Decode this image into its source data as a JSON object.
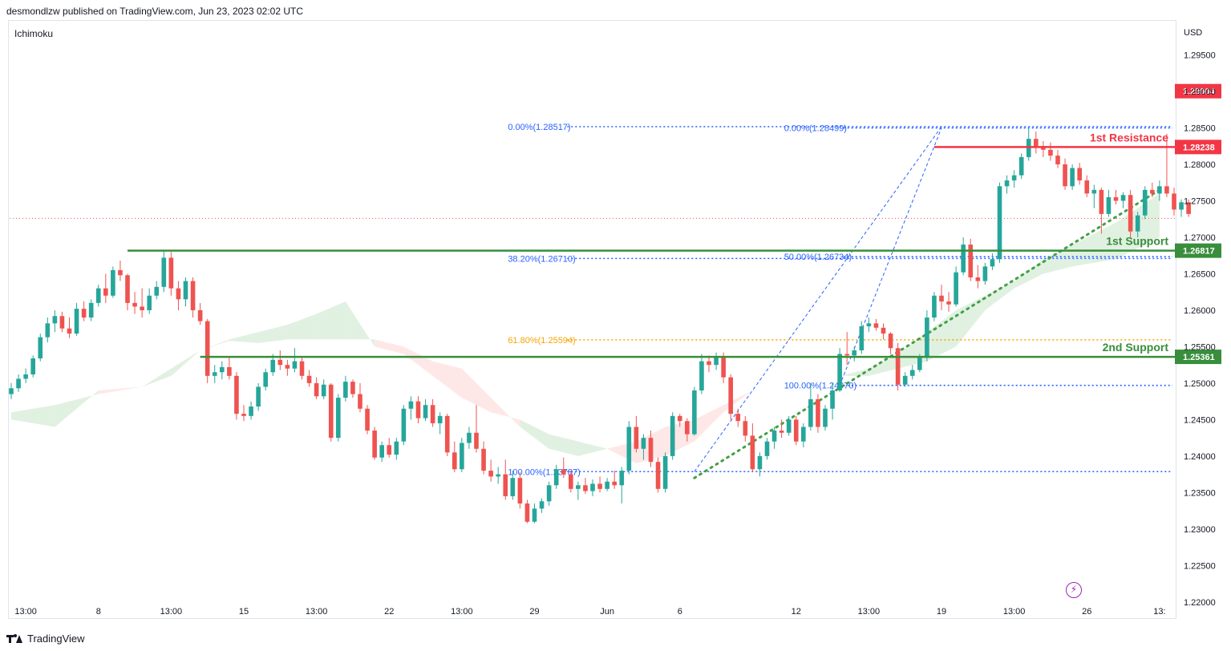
{
  "header": {
    "text": "desmondlzw published on TradingView.com, Jun 23, 2023 02:02 UTC"
  },
  "indicator": {
    "name": "Ichimoku"
  },
  "footer": {
    "brand": "TradingView"
  },
  "colors": {
    "up": "#26a69a",
    "down": "#ef5350",
    "resistance": "#f23645",
    "support": "#388e3c",
    "fib_blue": "#2962ff",
    "fib_orange": "#f7a400",
    "cloud_green": "#c8e6c9",
    "cloud_red": "#fdd6d3",
    "trend_dotted": "#43a047",
    "current_price_line": "#ef5350",
    "flash_icon": "#9c27b0"
  },
  "icons": {
    "flash": "lightning-icon",
    "logo": "tradingview-logo-icon"
  },
  "chart_data": {
    "type": "candlestick",
    "currency": "USD",
    "ylim": [
      1.218,
      1.301
    ],
    "y_ticks": [
      "1.29500",
      "1.29000",
      "1.28500",
      "1.28000",
      "1.27500",
      "1.27000",
      "1.26500",
      "1.26000",
      "1.25500",
      "1.25000",
      "1.24500",
      "1.24000",
      "1.23500",
      "1.23000",
      "1.22500",
      "1.22000"
    ],
    "x_ticks": [
      "13:00",
      "8",
      "13:00",
      "15",
      "13:00",
      "22",
      "13:00",
      "29",
      "Jun",
      "6",
      "12",
      "13:00",
      "19",
      "13:00",
      "26",
      "13:"
    ],
    "x_tick_index": [
      2,
      12,
      22,
      32,
      42,
      52,
      62,
      72,
      82,
      92,
      108,
      118,
      128,
      138,
      148,
      158
    ],
    "x_index_range": [
      0,
      160
    ],
    "ohlc": [
      [
        1.2485,
        1.25,
        1.2478,
        1.2493
      ],
      [
        1.2493,
        1.2512,
        1.2488,
        1.2506
      ],
      [
        1.2506,
        1.252,
        1.25,
        1.2512
      ],
      [
        1.2512,
        1.2538,
        1.2508,
        1.2534
      ],
      [
        1.2534,
        1.2568,
        1.253,
        1.2563
      ],
      [
        1.2563,
        1.259,
        1.2556,
        1.2582
      ],
      [
        1.2582,
        1.26,
        1.257,
        1.2592
      ],
      [
        1.2592,
        1.2598,
        1.257,
        1.2575
      ],
      [
        1.2575,
        1.259,
        1.2562,
        1.2568
      ],
      [
        1.2568,
        1.261,
        1.2565,
        1.2602
      ],
      [
        1.2602,
        1.2612,
        1.2585,
        1.259
      ],
      [
        1.259,
        1.2615,
        1.2585,
        1.261
      ],
      [
        1.261,
        1.2635,
        1.2605,
        1.263
      ],
      [
        1.263,
        1.265,
        1.261,
        1.262
      ],
      [
        1.262,
        1.266,
        1.2617,
        1.2655
      ],
      [
        1.2655,
        1.2668,
        1.264,
        1.2648
      ],
      [
        1.2648,
        1.265,
        1.26,
        1.261
      ],
      [
        1.261,
        1.2625,
        1.2595,
        1.2605
      ],
      [
        1.2605,
        1.263,
        1.259,
        1.26
      ],
      [
        1.26,
        1.263,
        1.2595,
        1.262
      ],
      [
        1.262,
        1.264,
        1.2615,
        1.2632
      ],
      [
        1.2632,
        1.2682,
        1.2625,
        1.2672
      ],
      [
        1.2672,
        1.268,
        1.262,
        1.263
      ],
      [
        1.263,
        1.264,
        1.26,
        1.2615
      ],
      [
        1.2615,
        1.2645,
        1.2605,
        1.264
      ],
      [
        1.264,
        1.2645,
        1.259,
        1.26
      ],
      [
        1.26,
        1.261,
        1.258,
        1.2585
      ],
      [
        1.2585,
        1.2588,
        1.25,
        1.251
      ],
      [
        1.251,
        1.2525,
        1.25,
        1.2515
      ],
      [
        1.2515,
        1.253,
        1.2505,
        1.2522
      ],
      [
        1.2522,
        1.2536,
        1.2505,
        1.251
      ],
      [
        1.251,
        1.2515,
        1.245,
        1.2458
      ],
      [
        1.2458,
        1.247,
        1.2448,
        1.2455
      ],
      [
        1.2455,
        1.2475,
        1.245,
        1.2468
      ],
      [
        1.2468,
        1.25,
        1.2462,
        1.2495
      ],
      [
        1.2495,
        1.252,
        1.249,
        1.2515
      ],
      [
        1.2515,
        1.254,
        1.251,
        1.2532
      ],
      [
        1.2532,
        1.2545,
        1.2518,
        1.2525
      ],
      [
        1.2525,
        1.2532,
        1.251,
        1.252
      ],
      [
        1.252,
        1.2548,
        1.2515,
        1.253
      ],
      [
        1.253,
        1.2535,
        1.2505,
        1.251
      ],
      [
        1.251,
        1.2518,
        1.2495,
        1.25
      ],
      [
        1.25,
        1.2508,
        1.2478,
        1.2482
      ],
      [
        1.2482,
        1.2505,
        1.2478,
        1.2498
      ],
      [
        1.2498,
        1.25,
        1.242,
        1.2425
      ],
      [
        1.2425,
        1.2485,
        1.242,
        1.248
      ],
      [
        1.248,
        1.251,
        1.2475,
        1.2502
      ],
      [
        1.2502,
        1.2505,
        1.248,
        1.2485
      ],
      [
        1.2485,
        1.25,
        1.246,
        1.2465
      ],
      [
        1.2465,
        1.247,
        1.243,
        1.2435
      ],
      [
        1.2435,
        1.244,
        1.2395,
        1.2398
      ],
      [
        1.2398,
        1.242,
        1.2392,
        1.2415
      ],
      [
        1.2415,
        1.2425,
        1.2398,
        1.2402
      ],
      [
        1.2402,
        1.2425,
        1.2395,
        1.242
      ],
      [
        1.242,
        1.247,
        1.2415,
        1.2465
      ],
      [
        1.2465,
        1.2482,
        1.245,
        1.2475
      ],
      [
        1.2475,
        1.2482,
        1.2445,
        1.2452
      ],
      [
        1.2452,
        1.2478,
        1.2448,
        1.247
      ],
      [
        1.247,
        1.2478,
        1.244,
        1.2445
      ],
      [
        1.2445,
        1.246,
        1.243,
        1.2455
      ],
      [
        1.2455,
        1.2458,
        1.24,
        1.2405
      ],
      [
        1.2405,
        1.242,
        1.2378,
        1.2382
      ],
      [
        1.2382,
        1.2425,
        1.2378,
        1.2418
      ],
      [
        1.2418,
        1.244,
        1.241,
        1.2432
      ],
      [
        1.2432,
        1.247,
        1.2405,
        1.241
      ],
      [
        1.241,
        1.242,
        1.2375,
        1.238
      ],
      [
        1.238,
        1.2395,
        1.2365,
        1.2372
      ],
      [
        1.2372,
        1.2385,
        1.2362,
        1.2375
      ],
      [
        1.2375,
        1.2395,
        1.234,
        1.2345
      ],
      [
        1.2345,
        1.238,
        1.234,
        1.237
      ],
      [
        1.237,
        1.2378,
        1.2328,
        1.2335
      ],
      [
        1.2335,
        1.234,
        1.2308,
        1.231
      ],
      [
        1.231,
        1.2335,
        1.2308,
        1.2328
      ],
      [
        1.2328,
        1.2342,
        1.2322,
        1.2338
      ],
      [
        1.2338,
        1.2365,
        1.2332,
        1.236
      ],
      [
        1.236,
        1.2388,
        1.2355,
        1.2382
      ],
      [
        1.2382,
        1.2398,
        1.237,
        1.2375
      ],
      [
        1.2375,
        1.238,
        1.235,
        1.2355
      ],
      [
        1.2355,
        1.2365,
        1.234,
        1.236
      ],
      [
        1.236,
        1.237,
        1.2348,
        1.2352
      ],
      [
        1.2352,
        1.2368,
        1.2345,
        1.2362
      ],
      [
        1.2362,
        1.2372,
        1.235,
        1.2355
      ],
      [
        1.2355,
        1.237,
        1.2352,
        1.2365
      ],
      [
        1.2365,
        1.238,
        1.2355,
        1.236
      ],
      [
        1.236,
        1.2385,
        1.2335,
        1.238
      ],
      [
        1.238,
        1.2448,
        1.2375,
        1.244
      ],
      [
        1.244,
        1.2455,
        1.2405,
        1.241
      ],
      [
        1.241,
        1.243,
        1.2395,
        1.2425
      ],
      [
        1.2425,
        1.2435,
        1.2385,
        1.2392
      ],
      [
        1.2392,
        1.2398,
        1.235,
        1.2355
      ],
      [
        1.2355,
        1.2405,
        1.235,
        1.24
      ],
      [
        1.24,
        1.246,
        1.2395,
        1.2455
      ],
      [
        1.2455,
        1.2458,
        1.244,
        1.2448
      ],
      [
        1.2448,
        1.2452,
        1.242,
        1.243
      ],
      [
        1.243,
        1.2495,
        1.2428,
        1.249
      ],
      [
        1.249,
        1.254,
        1.2485,
        1.253
      ],
      [
        1.253,
        1.2538,
        1.2515,
        1.2525
      ],
      [
        1.2525,
        1.2542,
        1.2518,
        1.2535
      ],
      [
        1.2535,
        1.2542,
        1.25,
        1.2508
      ],
      [
        1.2508,
        1.2512,
        1.245,
        1.2458
      ],
      [
        1.2458,
        1.2465,
        1.244,
        1.2448
      ],
      [
        1.2448,
        1.2455,
        1.242,
        1.2428
      ],
      [
        1.2428,
        1.2445,
        1.2378,
        1.2382
      ],
      [
        1.2382,
        1.2405,
        1.2372,
        1.24
      ],
      [
        1.24,
        1.2425,
        1.2395,
        1.242
      ],
      [
        1.242,
        1.244,
        1.241,
        1.2435
      ],
      [
        1.2435,
        1.245,
        1.2425,
        1.2432
      ],
      [
        1.2432,
        1.2455,
        1.2428,
        1.245
      ],
      [
        1.245,
        1.2455,
        1.2415,
        1.242
      ],
      [
        1.242,
        1.2445,
        1.2412,
        1.244
      ],
      [
        1.244,
        1.25,
        1.2435,
        1.2478
      ],
      [
        1.2478,
        1.2485,
        1.2432,
        1.244
      ],
      [
        1.244,
        1.247,
        1.2435,
        1.2465
      ],
      [
        1.2465,
        1.25,
        1.245,
        1.249
      ],
      [
        1.249,
        1.2548,
        1.2488,
        1.254
      ],
      [
        1.254,
        1.257,
        1.2525,
        1.2538
      ],
      [
        1.2538,
        1.255,
        1.253,
        1.2545
      ],
      [
        1.2545,
        1.2585,
        1.254,
        1.2578
      ],
      [
        1.2578,
        1.259,
        1.257,
        1.2582
      ],
      [
        1.2582,
        1.2588,
        1.2572,
        1.2576
      ],
      [
        1.2576,
        1.2582,
        1.256,
        1.2568
      ],
      [
        1.2568,
        1.257,
        1.254,
        1.2548
      ],
      [
        1.2548,
        1.2555,
        1.249,
        1.2498
      ],
      [
        1.2498,
        1.2515,
        1.2495,
        1.251
      ],
      [
        1.251,
        1.2525,
        1.2505,
        1.2518
      ],
      [
        1.2518,
        1.254,
        1.2515,
        1.2535
      ],
      [
        1.2535,
        1.26,
        1.253,
        1.259
      ],
      [
        1.259,
        1.2625,
        1.2585,
        1.262
      ],
      [
        1.262,
        1.2635,
        1.26,
        1.2612
      ],
      [
        1.2612,
        1.2625,
        1.2598,
        1.2608
      ],
      [
        1.2608,
        1.266,
        1.2605,
        1.2652
      ],
      [
        1.2652,
        1.27,
        1.2648,
        1.269
      ],
      [
        1.269,
        1.2698,
        1.264,
        1.2645
      ],
      [
        1.2645,
        1.2662,
        1.263,
        1.264
      ],
      [
        1.264,
        1.2665,
        1.2635,
        1.266
      ],
      [
        1.266,
        1.2678,
        1.2655,
        1.267
      ],
      [
        1.267,
        1.2775,
        1.2665,
        1.277
      ],
      [
        1.277,
        1.2785,
        1.276,
        1.2778
      ],
      [
        1.2778,
        1.2792,
        1.2768,
        1.2785
      ],
      [
        1.2785,
        1.2815,
        1.278,
        1.281
      ],
      [
        1.281,
        1.285,
        1.2805,
        1.2835
      ],
      [
        1.2835,
        1.2845,
        1.2815,
        1.2825
      ],
      [
        1.2825,
        1.2832,
        1.281,
        1.282
      ],
      [
        1.282,
        1.283,
        1.2805,
        1.2812
      ],
      [
        1.2812,
        1.282,
        1.2795,
        1.28
      ],
      [
        1.28,
        1.2808,
        1.2765,
        1.277
      ],
      [
        1.277,
        1.28,
        1.2765,
        1.2795
      ],
      [
        1.2795,
        1.2802,
        1.2772,
        1.2778
      ],
      [
        1.2778,
        1.2785,
        1.2755,
        1.276
      ],
      [
        1.276,
        1.2772,
        1.274,
        1.2765
      ],
      [
        1.2765,
        1.2768,
        1.2705,
        1.2732
      ],
      [
        1.2732,
        1.2765,
        1.2728,
        1.2755
      ],
      [
        1.2755,
        1.2765,
        1.2745,
        1.275
      ],
      [
        1.275,
        1.2762,
        1.274,
        1.2758
      ],
      [
        1.2758,
        1.2765,
        1.27,
        1.2708
      ],
      [
        1.2708,
        1.2735,
        1.27,
        1.273
      ],
      [
        1.273,
        1.277,
        1.2725,
        1.2765
      ],
      [
        1.2765,
        1.2775,
        1.2755,
        1.276
      ],
      [
        1.276,
        1.2778,
        1.275,
        1.277
      ],
      [
        1.277,
        1.2842,
        1.2755,
        1.276
      ],
      [
        1.276,
        1.2768,
        1.273,
        1.2738
      ],
      [
        1.2738,
        1.2752,
        1.2728,
        1.2748
      ],
      [
        1.2748,
        1.2752,
        1.2728,
        1.2732
      ]
    ],
    "ichimoku_cloud": {
      "x": [
        0,
        6,
        12,
        18,
        22,
        26,
        30,
        34,
        38,
        42,
        46,
        50,
        54,
        58,
        62,
        66,
        70,
        74,
        78,
        82,
        86,
        90,
        94,
        98,
        102,
        106,
        110,
        114,
        118,
        122,
        126,
        130,
        134,
        138,
        142,
        146,
        152,
        158
      ],
      "span_a": [
        1.246,
        1.247,
        1.2485,
        1.2495,
        1.252,
        1.2545,
        1.256,
        1.257,
        1.258,
        1.2595,
        1.2612,
        1.255,
        1.254,
        1.251,
        1.248,
        1.246,
        1.245,
        1.243,
        1.242,
        1.241,
        1.239,
        1.24,
        1.242,
        1.246,
        1.249,
        1.25,
        1.2508,
        1.251,
        1.252,
        1.254,
        1.257,
        1.26,
        1.262,
        1.264,
        1.267,
        1.269,
        1.272,
        1.276
      ],
      "span_b": [
        1.245,
        1.244,
        1.249,
        1.2495,
        1.251,
        1.2545,
        1.2558,
        1.2555,
        1.256,
        1.256,
        1.256,
        1.256,
        1.255,
        1.253,
        1.252,
        1.248,
        1.244,
        1.241,
        1.24,
        1.241,
        1.242,
        1.244,
        1.245,
        1.247,
        1.249,
        1.25,
        1.2508,
        1.251,
        1.251,
        1.252,
        1.253,
        1.255,
        1.26,
        1.263,
        1.265,
        1.266,
        1.267,
        1.27
      ]
    },
    "horizontal_lines": [
      {
        "label": "1st Resistance",
        "price": 1.28238,
        "price_label": "1.28238",
        "color": "#f23645",
        "from_index": 127
      },
      {
        "label": "1st Support",
        "price": 1.26817,
        "price_label": "1.26817",
        "color": "#388e3c",
        "from_index": 16
      },
      {
        "label": "2nd Support",
        "price": 1.25361,
        "price_label": "1.25361",
        "color": "#388e3c",
        "from_index": 26
      }
    ],
    "price_badges": [
      {
        "price": 1.29004,
        "text": "1.29004",
        "color": "#f23645"
      }
    ],
    "current_price": 1.2726,
    "fib_levels": [
      {
        "text": "0.00%(1.28517)",
        "price": 1.28517,
        "color": "#2962ff",
        "from_index": 69
      },
      {
        "text": "38.20%(1.26710)",
        "price": 1.2671,
        "color": "#2962ff",
        "from_index": 69
      },
      {
        "text": "61.80%(1.25594)",
        "price": 1.25594,
        "color": "#f7a400",
        "from_index": 69
      },
      {
        "text": "100.00%(1.23787)",
        "price": 1.23787,
        "color": "#2962ff",
        "from_index": 69
      },
      {
        "text": "0.00%(1.28499)",
        "price": 1.28499,
        "color": "#2962ff",
        "from_index": 107
      },
      {
        "text": "50.00%(1.26734)",
        "price": 1.26734,
        "color": "#2962ff",
        "from_index": 107
      },
      {
        "text": "100.00%(1.24970)",
        "price": 1.2497,
        "color": "#2962ff",
        "from_index": 107
      }
    ],
    "fib_trend_lines": [
      {
        "from": [
          94,
          1.23787
        ],
        "to": [
          128,
          1.28517
        ]
      },
      {
        "from": [
          114,
          1.2497
        ],
        "to": [
          128,
          1.28499
        ]
      }
    ],
    "trend_line": {
      "from": [
        94,
        1.237
      ],
      "to": [
        158,
        1.2765
      ]
    },
    "legend": "none",
    "grid": false
  }
}
